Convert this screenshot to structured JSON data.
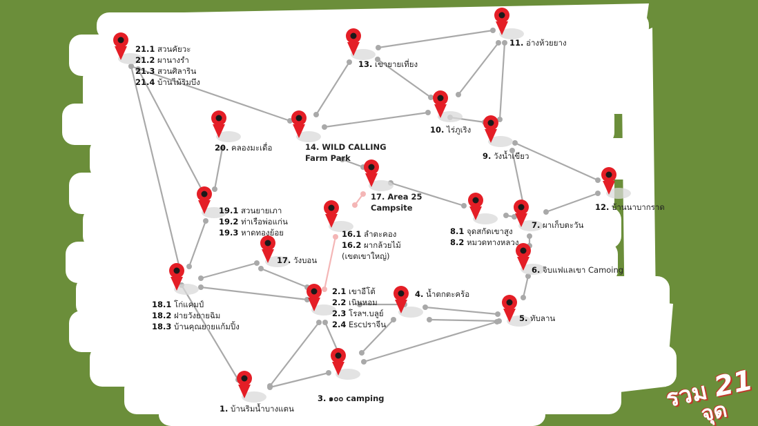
{
  "colors": {
    "background": "#6b8e3a",
    "paper": "#ffffff",
    "route": "#a9a9a9",
    "route_highlight": "#f4b6b6",
    "marker": "#e41e26"
  },
  "labels": {
    "p1": {
      "num": "1.",
      "name": "บ้านริมน้ำบางแตน"
    },
    "p2": {
      "lines": [
        [
          "2.1",
          "เขาอีโต้"
        ],
        [
          "2.2",
          "เนินหอม"
        ],
        [
          "2.3",
          "โรลฯ.บลูย์"
        ],
        [
          "2.4",
          "Escปราจีน"
        ]
      ]
    },
    "p3": {
      "num": "3.",
      "name": "๑๐๐ camping"
    },
    "p4": {
      "num": "4.",
      "name": "น้ำตกตะคร้อ"
    },
    "p5": {
      "num": "5.",
      "name": "ทับลาน"
    },
    "p6": {
      "num": "6.",
      "name": "จิบแฟแลเขา Camoing"
    },
    "p7": {
      "num": "7.",
      "name": "ผาเก็บตะวัน"
    },
    "p8": {
      "lines": [
        [
          "8.1",
          "จุดสกัดเขาสูง"
        ],
        [
          "8.2",
          "หมวดทางหลวง"
        ]
      ]
    },
    "p9": {
      "num": "9.",
      "name": "วังน้ำเขียว"
    },
    "p10": {
      "num": "10.",
      "name": "ไร่ภูเริง"
    },
    "p11": {
      "num": "11.",
      "name": "อ่างห้วยยาง"
    },
    "p12": {
      "num": "12.",
      "name": "บ้านนาบากราด"
    },
    "p13": {
      "num": "13.",
      "name": "เขายายเที่ยง"
    },
    "p14": {
      "line1": "14. WILD CALLING",
      "line2": "Farm Park"
    },
    "p16": {
      "lines": [
        [
          "16.1",
          "ลำตะคอง"
        ],
        [
          "16.2",
          "ผากล้วยไม้"
        ]
      ],
      "extra": "(เขตเขาใหญ่)"
    },
    "p17": {
      "num": "17.",
      "name": "วังบอน"
    },
    "p17b": {
      "line1": "17. Area 25",
      "line2": "Campsite"
    },
    "p18": {
      "lines": [
        [
          "18.1",
          "โก่แคมป์"
        ],
        [
          "18.2",
          "ฝายวังยายฉิม"
        ],
        [
          "18.3",
          "บ้านคุณยายแก้มปิ้ง"
        ]
      ]
    },
    "p19": {
      "lines": [
        [
          "19.1",
          "สวนยายเภา"
        ],
        [
          "19.2",
          "ท่าเรือพ่อแก่น"
        ],
        [
          "19.3",
          "หาดทองย้อย"
        ]
      ]
    },
    "p20": {
      "num": "20.",
      "name": "คลองมะเดื่อ"
    },
    "p21": {
      "lines": [
        [
          "21.1",
          "สวนคัยวะ"
        ],
        [
          "21.2",
          "ผานางรำ"
        ],
        [
          "21.3",
          "สวนศิลาริน"
        ],
        [
          "21.4",
          "บ้านไม้ริมบึง"
        ]
      ]
    }
  },
  "total": {
    "word": "รวม",
    "number": "21",
    "unit": "จุด"
  }
}
